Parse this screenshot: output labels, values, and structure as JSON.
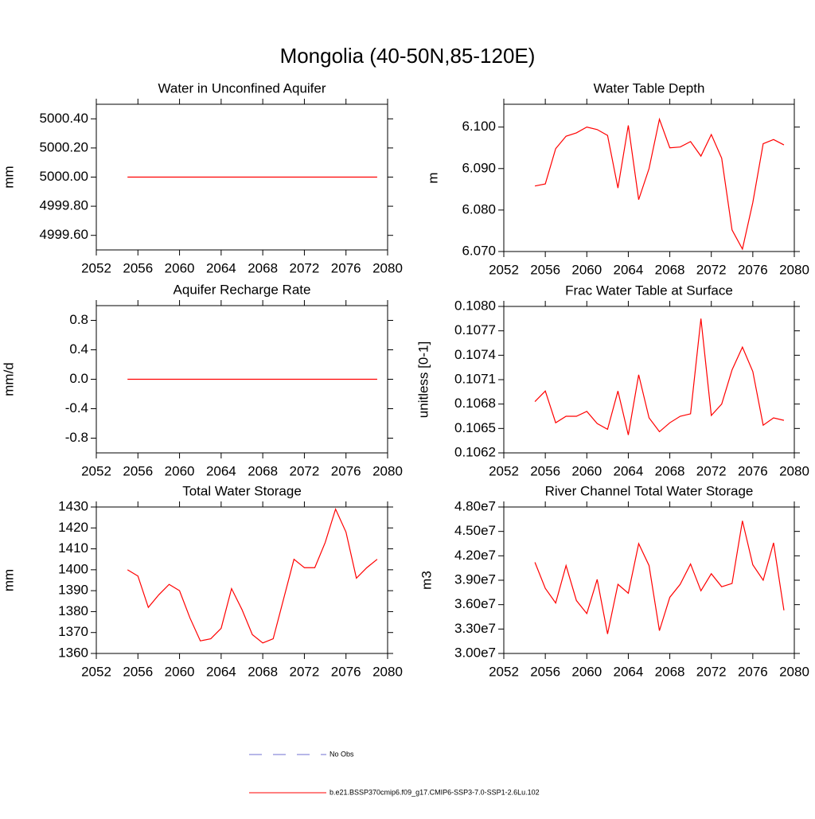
{
  "title": "Mongolia (40-50N,85-120E)",
  "legend": [
    {
      "name": "No Obs",
      "color": "#6f6fd0",
      "style": "dashed"
    },
    {
      "name": "b.e21.BSSP370cmip6.f09_g17.CMIP6-SSP3-7.0-SSP1-2.6Lu.102",
      "color": "#ff0000",
      "style": "solid"
    }
  ],
  "chart_data": [
    {
      "type": "line",
      "title": "Water in Unconfined Aquifer",
      "y_label": "mm",
      "x": [
        2055,
        2056,
        2057,
        2058,
        2059,
        2060,
        2061,
        2062,
        2063,
        2064,
        2065,
        2066,
        2067,
        2068,
        2069,
        2070,
        2071,
        2072,
        2073,
        2074,
        2075,
        2076,
        2077,
        2078,
        2079
      ],
      "xlim": [
        2052,
        2080
      ],
      "xticks": [
        2052,
        2056,
        2060,
        2064,
        2068,
        2072,
        2076,
        2080
      ],
      "ylim": [
        4999.5,
        5000.5
      ],
      "yticks": [
        {
          "value": 4999.6,
          "label": "4999.60"
        },
        {
          "value": 4999.8,
          "label": "4999.80"
        },
        {
          "value": 5000,
          "label": "5000.00"
        },
        {
          "value": 5000.2,
          "label": "5000.20"
        },
        {
          "value": 5000.4,
          "label": "5000.40"
        }
      ],
      "series": [
        {
          "color": "#ff0000",
          "values": [
            5000,
            5000,
            5000,
            5000,
            5000,
            5000,
            5000,
            5000,
            5000,
            5000,
            5000,
            5000,
            5000,
            5000,
            5000,
            5000,
            5000,
            5000,
            5000,
            5000,
            5000,
            5000,
            5000,
            5000,
            5000
          ]
        }
      ]
    },
    {
      "type": "line",
      "title": "Water Table Depth",
      "y_label": "m",
      "x": [
        2055,
        2056,
        2057,
        2058,
        2059,
        2060,
        2061,
        2062,
        2063,
        2064,
        2065,
        2066,
        2067,
        2068,
        2069,
        2070,
        2071,
        2072,
        2073,
        2074,
        2075,
        2076,
        2077,
        2078,
        2079
      ],
      "xlim": [
        2052,
        2080
      ],
      "xticks": [
        2052,
        2056,
        2060,
        2064,
        2068,
        2072,
        2076,
        2080
      ],
      "ylim": [
        6.07,
        6.1055
      ],
      "yticks": [
        {
          "value": 6.07,
          "label": "6.070"
        },
        {
          "value": 6.08,
          "label": "6.080"
        },
        {
          "value": 6.09,
          "label": "6.090"
        },
        {
          "value": 6.1,
          "label": "6.100"
        }
      ],
      "series": [
        {
          "color": "#ff0000",
          "values": [
            6.0858,
            6.0863,
            6.0948,
            6.0978,
            6.0986,
            6.1,
            6.0994,
            6.098,
            6.0853,
            6.1004,
            6.0825,
            6.09,
            6.1019,
            6.095,
            6.0952,
            6.0965,
            6.093,
            6.0982,
            6.0925,
            6.0752,
            6.0706,
            6.0818,
            6.096,
            6.097,
            6.0957
          ]
        }
      ]
    },
    {
      "type": "line",
      "title": "Aquifer Recharge Rate",
      "y_label": "mm/d",
      "x": [
        2055,
        2056,
        2057,
        2058,
        2059,
        2060,
        2061,
        2062,
        2063,
        2064,
        2065,
        2066,
        2067,
        2068,
        2069,
        2070,
        2071,
        2072,
        2073,
        2074,
        2075,
        2076,
        2077,
        2078,
        2079
      ],
      "xlim": [
        2052,
        2080
      ],
      "xticks": [
        2052,
        2056,
        2060,
        2064,
        2068,
        2072,
        2076,
        2080
      ],
      "ylim": [
        -1,
        1
      ],
      "yticks": [
        -0.8,
        -0.4,
        {
          "value": 0,
          "label": "0.0"
        },
        0.4,
        0.8
      ],
      "series": [
        {
          "color": "#ff0000",
          "values": [
            0,
            0,
            0,
            0,
            0,
            0,
            0,
            0,
            0,
            0,
            0,
            0,
            0,
            0,
            0,
            0,
            0,
            0,
            0,
            0,
            0,
            0,
            0,
            0,
            0
          ]
        }
      ]
    },
    {
      "type": "line",
      "title": "Frac Water Table at Surface",
      "y_label": "unitless [0-1]",
      "x": [
        2055,
        2056,
        2057,
        2058,
        2059,
        2060,
        2061,
        2062,
        2063,
        2064,
        2065,
        2066,
        2067,
        2068,
        2069,
        2070,
        2071,
        2072,
        2073,
        2074,
        2075,
        2076,
        2077,
        2078,
        2079
      ],
      "xlim": [
        2052,
        2080
      ],
      "xticks": [
        2052,
        2056,
        2060,
        2064,
        2068,
        2072,
        2076,
        2080
      ],
      "ylim": [
        0.1062,
        0.108
      ],
      "yticks": [
        0.1062,
        0.1065,
        0.1068,
        0.1071,
        0.1074,
        0.1077,
        {
          "value": 0.108,
          "label": "0.1080"
        }
      ],
      "series": [
        {
          "color": "#ff0000",
          "values": [
            0.10683,
            0.10696,
            0.10657,
            0.10665,
            0.10665,
            0.10671,
            0.10656,
            0.10649,
            0.10696,
            0.10642,
            0.10716,
            0.10663,
            0.10646,
            0.10657,
            0.10665,
            0.10668,
            0.10785,
            0.10666,
            0.1068,
            0.10722,
            0.1075,
            0.1072,
            0.10654,
            0.10663,
            0.1066
          ]
        }
      ]
    },
    {
      "type": "line",
      "title": "Total Water Storage",
      "y_label": "mm",
      "x": [
        2055,
        2056,
        2057,
        2058,
        2059,
        2060,
        2061,
        2062,
        2063,
        2064,
        2065,
        2066,
        2067,
        2068,
        2069,
        2070,
        2071,
        2072,
        2073,
        2074,
        2075,
        2076,
        2077,
        2078,
        2079
      ],
      "xlim": [
        2052,
        2080
      ],
      "xticks": [
        2052,
        2056,
        2060,
        2064,
        2068,
        2072,
        2076,
        2080
      ],
      "ylim": [
        1360,
        1430
      ],
      "yticks": [
        1360,
        1370,
        1380,
        1390,
        1400,
        1410,
        1420,
        1430
      ],
      "series": [
        {
          "color": "#ff0000",
          "values": [
            1400,
            1397,
            1382,
            1388,
            1393,
            1390,
            1377,
            1366,
            1367,
            1372,
            1391,
            1381,
            1369,
            1365,
            1367,
            1386,
            1405,
            1401,
            1401,
            1413,
            1429,
            1418,
            1396,
            1401,
            1405
          ]
        }
      ]
    },
    {
      "type": "line",
      "title": "River Channel Total Water Storage",
      "y_label": "m3",
      "x": [
        2055,
        2056,
        2057,
        2058,
        2059,
        2060,
        2061,
        2062,
        2063,
        2064,
        2065,
        2066,
        2067,
        2068,
        2069,
        2070,
        2071,
        2072,
        2073,
        2074,
        2075,
        2076,
        2077,
        2078,
        2079
      ],
      "xlim": [
        2052,
        2080
      ],
      "xticks": [
        2052,
        2056,
        2060,
        2064,
        2068,
        2072,
        2076,
        2080
      ],
      "ylim": [
        30000000,
        48000000
      ],
      "yticks": [
        {
          "value": 30000000,
          "label": "3.00e7"
        },
        {
          "value": 33000000,
          "label": "3.30e7"
        },
        {
          "value": 36000000,
          "label": "3.60e7"
        },
        {
          "value": 39000000,
          "label": "3.90e7"
        },
        {
          "value": 42000000,
          "label": "4.20e7"
        },
        {
          "value": 45000000,
          "label": "4.50e7"
        },
        {
          "value": 48000000,
          "label": "4.80e7"
        }
      ],
      "series": [
        {
          "color": "#ff0000",
          "values": [
            41200000,
            38000000,
            36200000,
            40800000,
            36500000,
            34900000,
            39100000,
            32400000,
            38500000,
            37400000,
            43500000,
            40800000,
            32800000,
            36900000,
            38500000,
            41000000,
            37700000,
            39800000,
            38200000,
            38600000,
            46300000,
            40900000,
            39000000,
            43600000,
            35300000
          ]
        }
      ]
    }
  ]
}
